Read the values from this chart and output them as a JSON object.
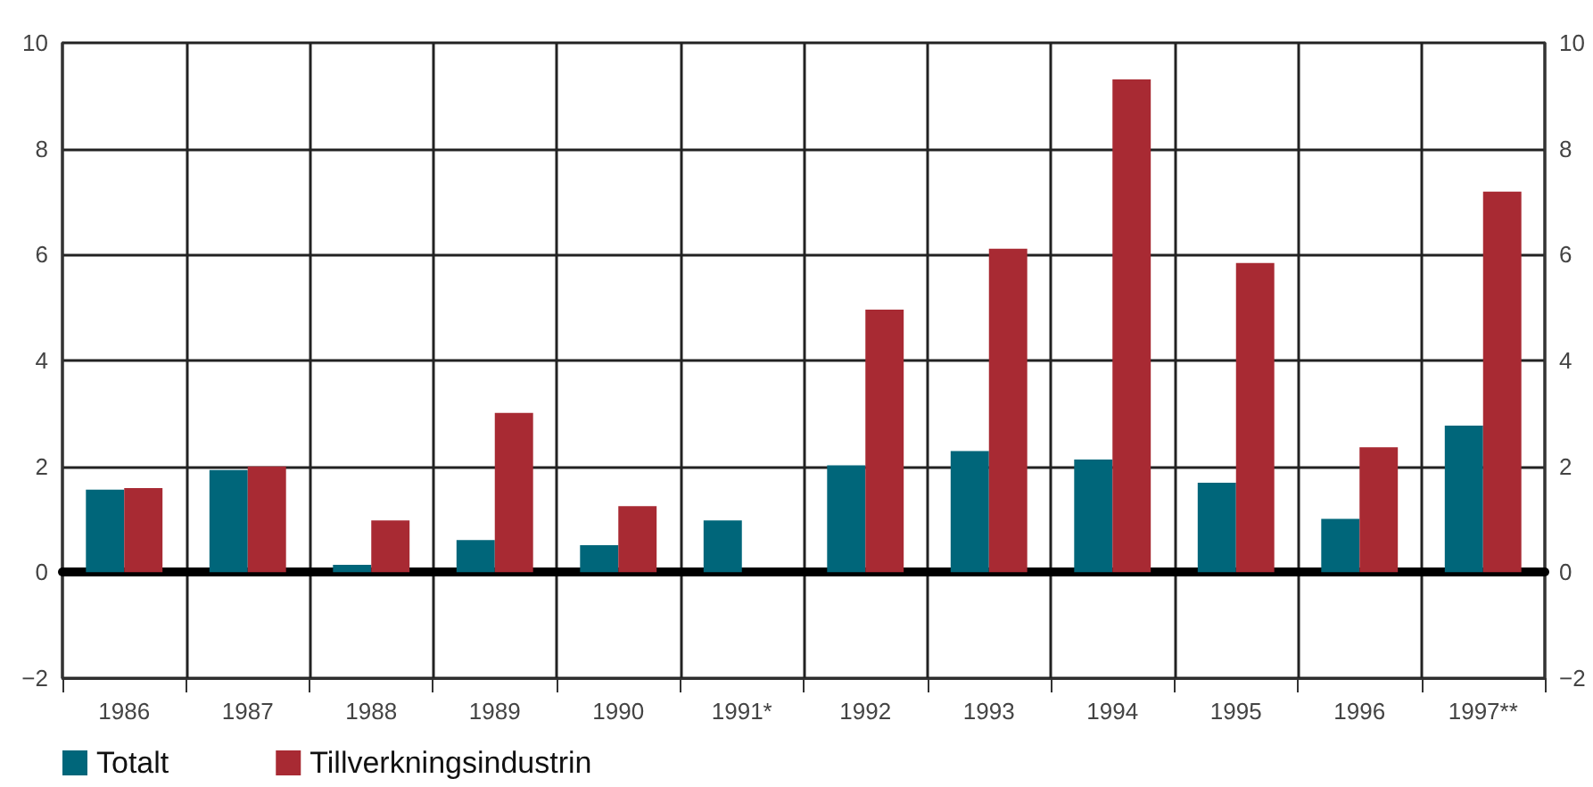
{
  "chart_data": {
    "type": "bar",
    "categories": [
      "1986",
      "1987",
      "1988",
      "1989",
      "1990",
      "1991*",
      "1992",
      "1993",
      "1994",
      "1995",
      "1996",
      "1997**"
    ],
    "series": [
      {
        "name": "Totalt",
        "color": "#00667a",
        "values": [
          1.56,
          1.93,
          0.14,
          0.61,
          0.51,
          0.98,
          2.02,
          2.29,
          2.13,
          1.69,
          1.01,
          2.77
        ]
      },
      {
        "name": "Tillverkningsindustrin",
        "color": "#a82a33",
        "values": [
          1.59,
          2.0,
          0.98,
          3.01,
          1.25,
          null,
          4.96,
          6.11,
          9.31,
          5.84,
          2.36,
          7.19
        ]
      }
    ],
    "ylim": [
      -2,
      10
    ],
    "yticks": [
      -2,
      0,
      2,
      4,
      6,
      8,
      10
    ],
    "y2lim": [
      -2,
      10
    ],
    "y2ticks": [
      -2,
      0,
      2,
      4,
      6,
      8,
      10
    ],
    "grid": true,
    "legend": "bottom left"
  }
}
